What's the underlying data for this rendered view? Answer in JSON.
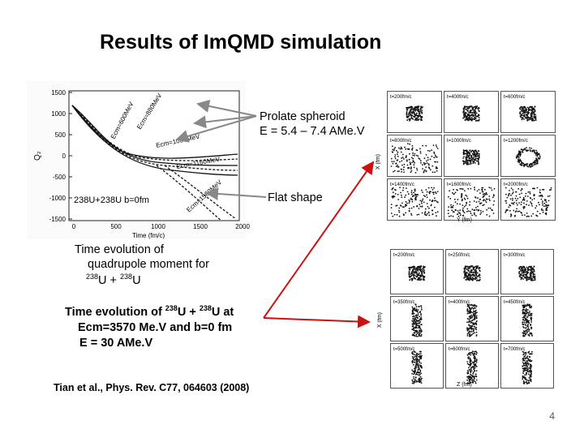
{
  "title": "Results of ImQMD simulation",
  "labels": {
    "prolate_line1": "Prolate spheroid",
    "prolate_line2": "E = 5.4 – 7.4 AMe.V",
    "flat": "Flat shape",
    "time_evolution_1_line1": "Time evolution of",
    "time_evolution_1_line2": "quadrupole moment  for",
    "time_evolution_1_line3_mass1": "238",
    "time_evolution_1_line3_sym1": "U + ",
    "time_evolution_1_line3_mass2": "238",
    "time_evolution_1_line3_sym2": "U",
    "time_evolution_2_pre": "Time evolution  of  ",
    "time_evolution_2_mass1": "238",
    "time_evolution_2_sym1": "U + ",
    "time_evolution_2_mass2": "238",
    "time_evolution_2_post": "U at",
    "time_evolution_2_line2": "Ecm=3570 Me.V and b=0 fm",
    "time_evolution_2_line3": "E = 30 AMe.V",
    "reference": "Tian et al., Phys. Rev. C77, 064603 (2008)",
    "page_number": "4"
  },
  "colors": {
    "arrow_red": "#cc1111",
    "arrow_gray": "#888888"
  },
  "plot": {
    "ylabel": "Q₂",
    "xlabel": "Time (fm/c)",
    "y_ticks": [
      "1500",
      "1000",
      "500",
      "0",
      "-500",
      "-1000",
      "-1500"
    ],
    "x_ticks": [
      "0",
      "500",
      "1000",
      "1500",
      "2000"
    ],
    "curve_labels": [
      "Ecm=600MeV",
      "Ecm=880MeV",
      "Ecm=1030MeV",
      "Ecm=1160MeV",
      "Ecm=1560MeV"
    ],
    "reaction_label": "238U+238U b=0fm"
  },
  "top_grid": {
    "cells": [
      {
        "label": "t=200fm/c"
      },
      {
        "label": "t=400fm/c"
      },
      {
        "label": "t=600fm/c"
      },
      {
        "label": "t=800fm/c"
      },
      {
        "label": "t=1000fm/c"
      },
      {
        "label": "t=1200fm/c"
      },
      {
        "label": "t=1400fm/c"
      },
      {
        "label": "t=1600fm/c"
      },
      {
        "label": "t=2000fm/c"
      }
    ],
    "ylabel": "X (fm)",
    "xlabel": "Y (fm)"
  },
  "bottom_grid": {
    "cells": [
      {
        "label": "t=200fm/c"
      },
      {
        "label": "t=250fm/c"
      },
      {
        "label": "t=300fm/c"
      },
      {
        "label": "t=350fm/c"
      },
      {
        "label": "t=400fm/c"
      },
      {
        "label": "t=450fm/c"
      },
      {
        "label": "t=500fm/c"
      },
      {
        "label": "t=600fm/c"
      },
      {
        "label": "t=700fm/c"
      }
    ],
    "ylabel": "X (fm)",
    "xlabel": "Z (fm)"
  }
}
